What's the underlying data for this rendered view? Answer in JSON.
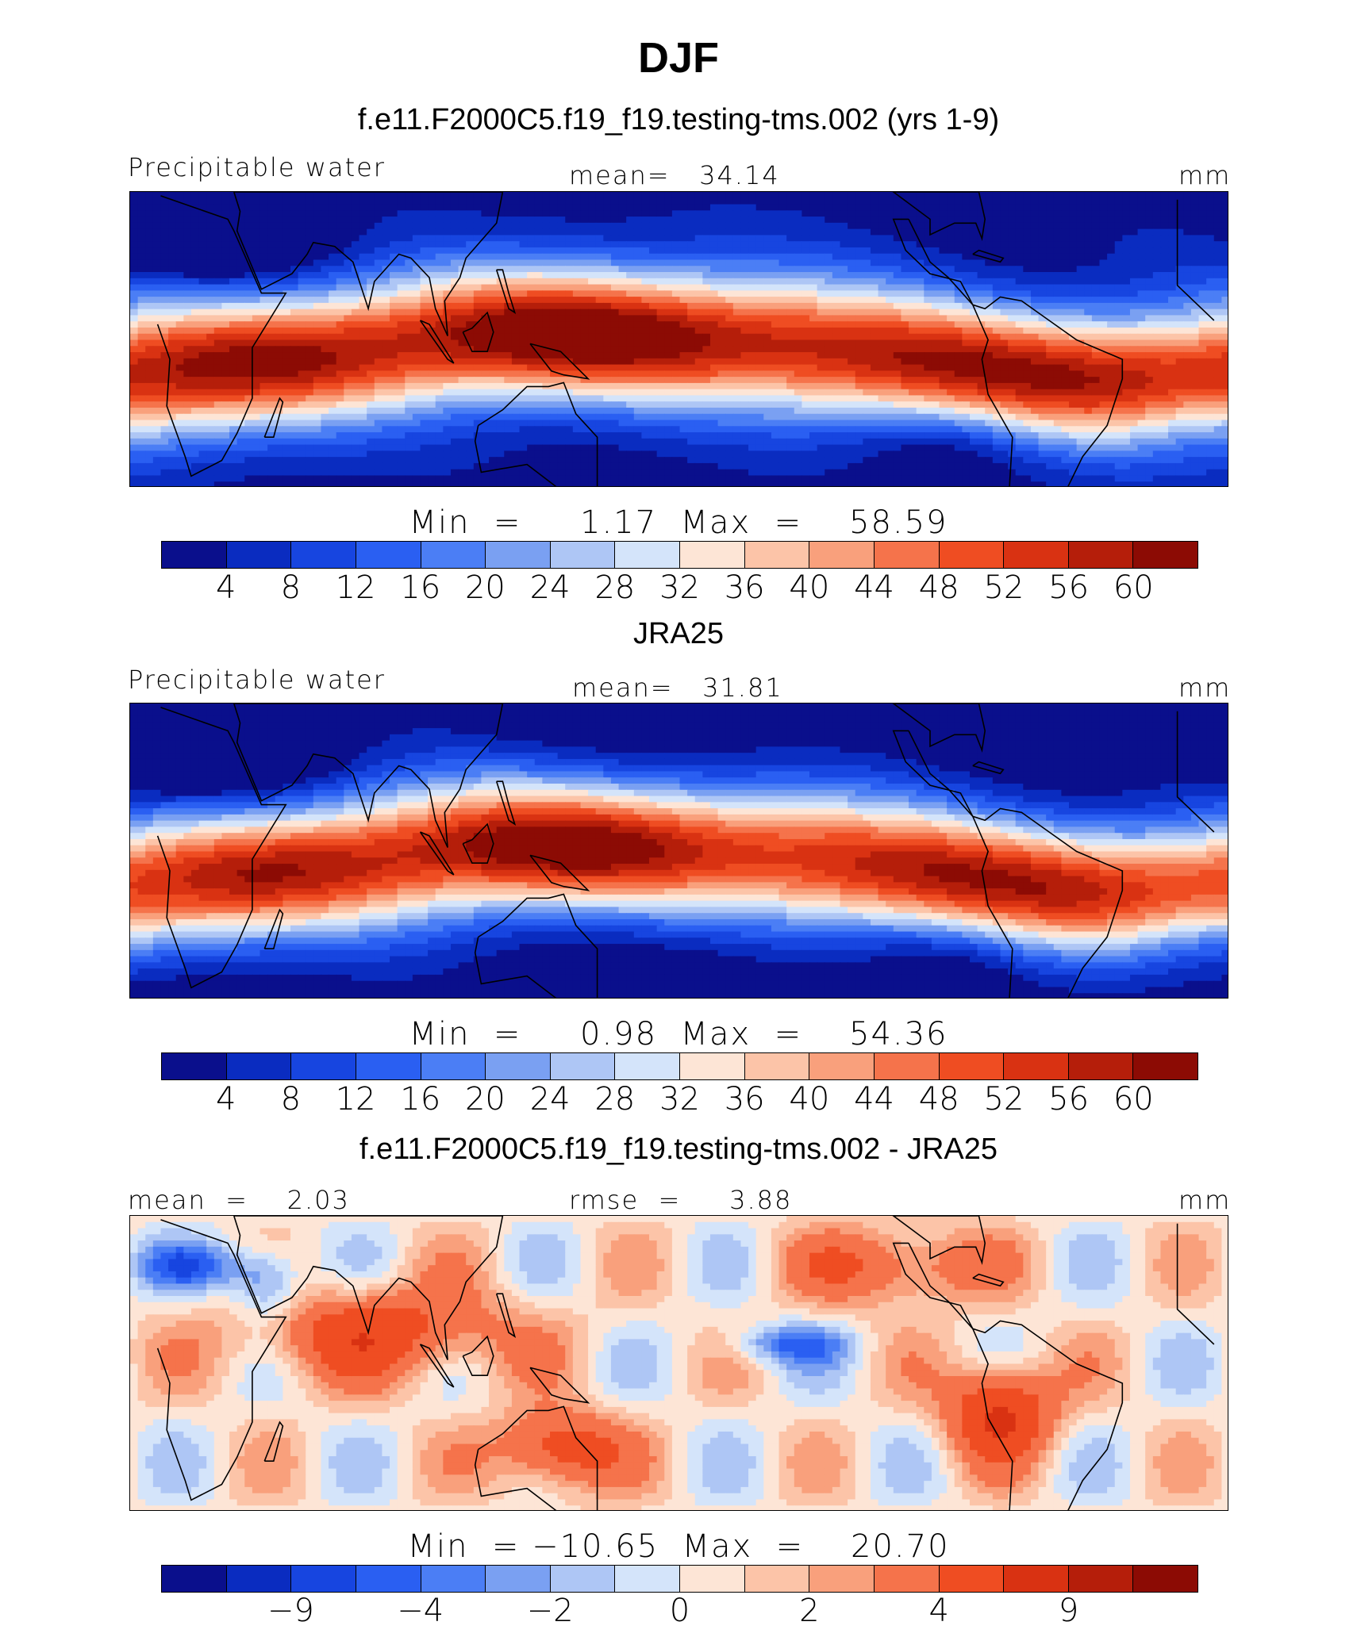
{
  "title": "DJF",
  "palette": [
    "#0a0f8c",
    "#0a2cc0",
    "#1745e0",
    "#2a5ff2",
    "#4b7ef5",
    "#7aa0f2",
    "#aec6f5",
    "#d4e4fa",
    "#fde5d6",
    "#fcc4a8",
    "#f9a07c",
    "#f5734b",
    "#ef4d22",
    "#d93212",
    "#b51e0a",
    "#8c0b04"
  ],
  "land_color": "#000000",
  "panels": [
    {
      "title": "f.e11.F2000C5.f19_f19.testing-tms.002 (yrs 1-9)",
      "left_label": "Precipitable water",
      "center_label": "mean=   34.14",
      "right_label": "mm",
      "min_max": "Min  =     1.17  Max  =    58.59",
      "ticks": [
        "4",
        "8",
        "12",
        "16",
        "20",
        "24",
        "28",
        "32",
        "36",
        "40",
        "44",
        "48",
        "52",
        "56",
        "60"
      ]
    },
    {
      "title": "JRA25",
      "left_label": "Precipitable water",
      "center_label": "mean=   31.81",
      "right_label": "mm",
      "min_max": "Min  =     0.98  Max  =    54.36",
      "ticks": [
        "4",
        "8",
        "12",
        "16",
        "20",
        "24",
        "28",
        "32",
        "36",
        "40",
        "44",
        "48",
        "52",
        "56",
        "60"
      ]
    },
    {
      "title": "f.e11.F2000C5.f19_f19.testing-tms.002 - JRA25",
      "left_label": "mean  =    2.03",
      "center_label": "rmse  =     3.88",
      "right_label": "mm",
      "min_max": "Min  = −10.65  Max  =    20.70",
      "ticks": [
        "−9",
        "−4",
        "−2",
        "0",
        "2",
        "4",
        "9"
      ]
    }
  ]
}
